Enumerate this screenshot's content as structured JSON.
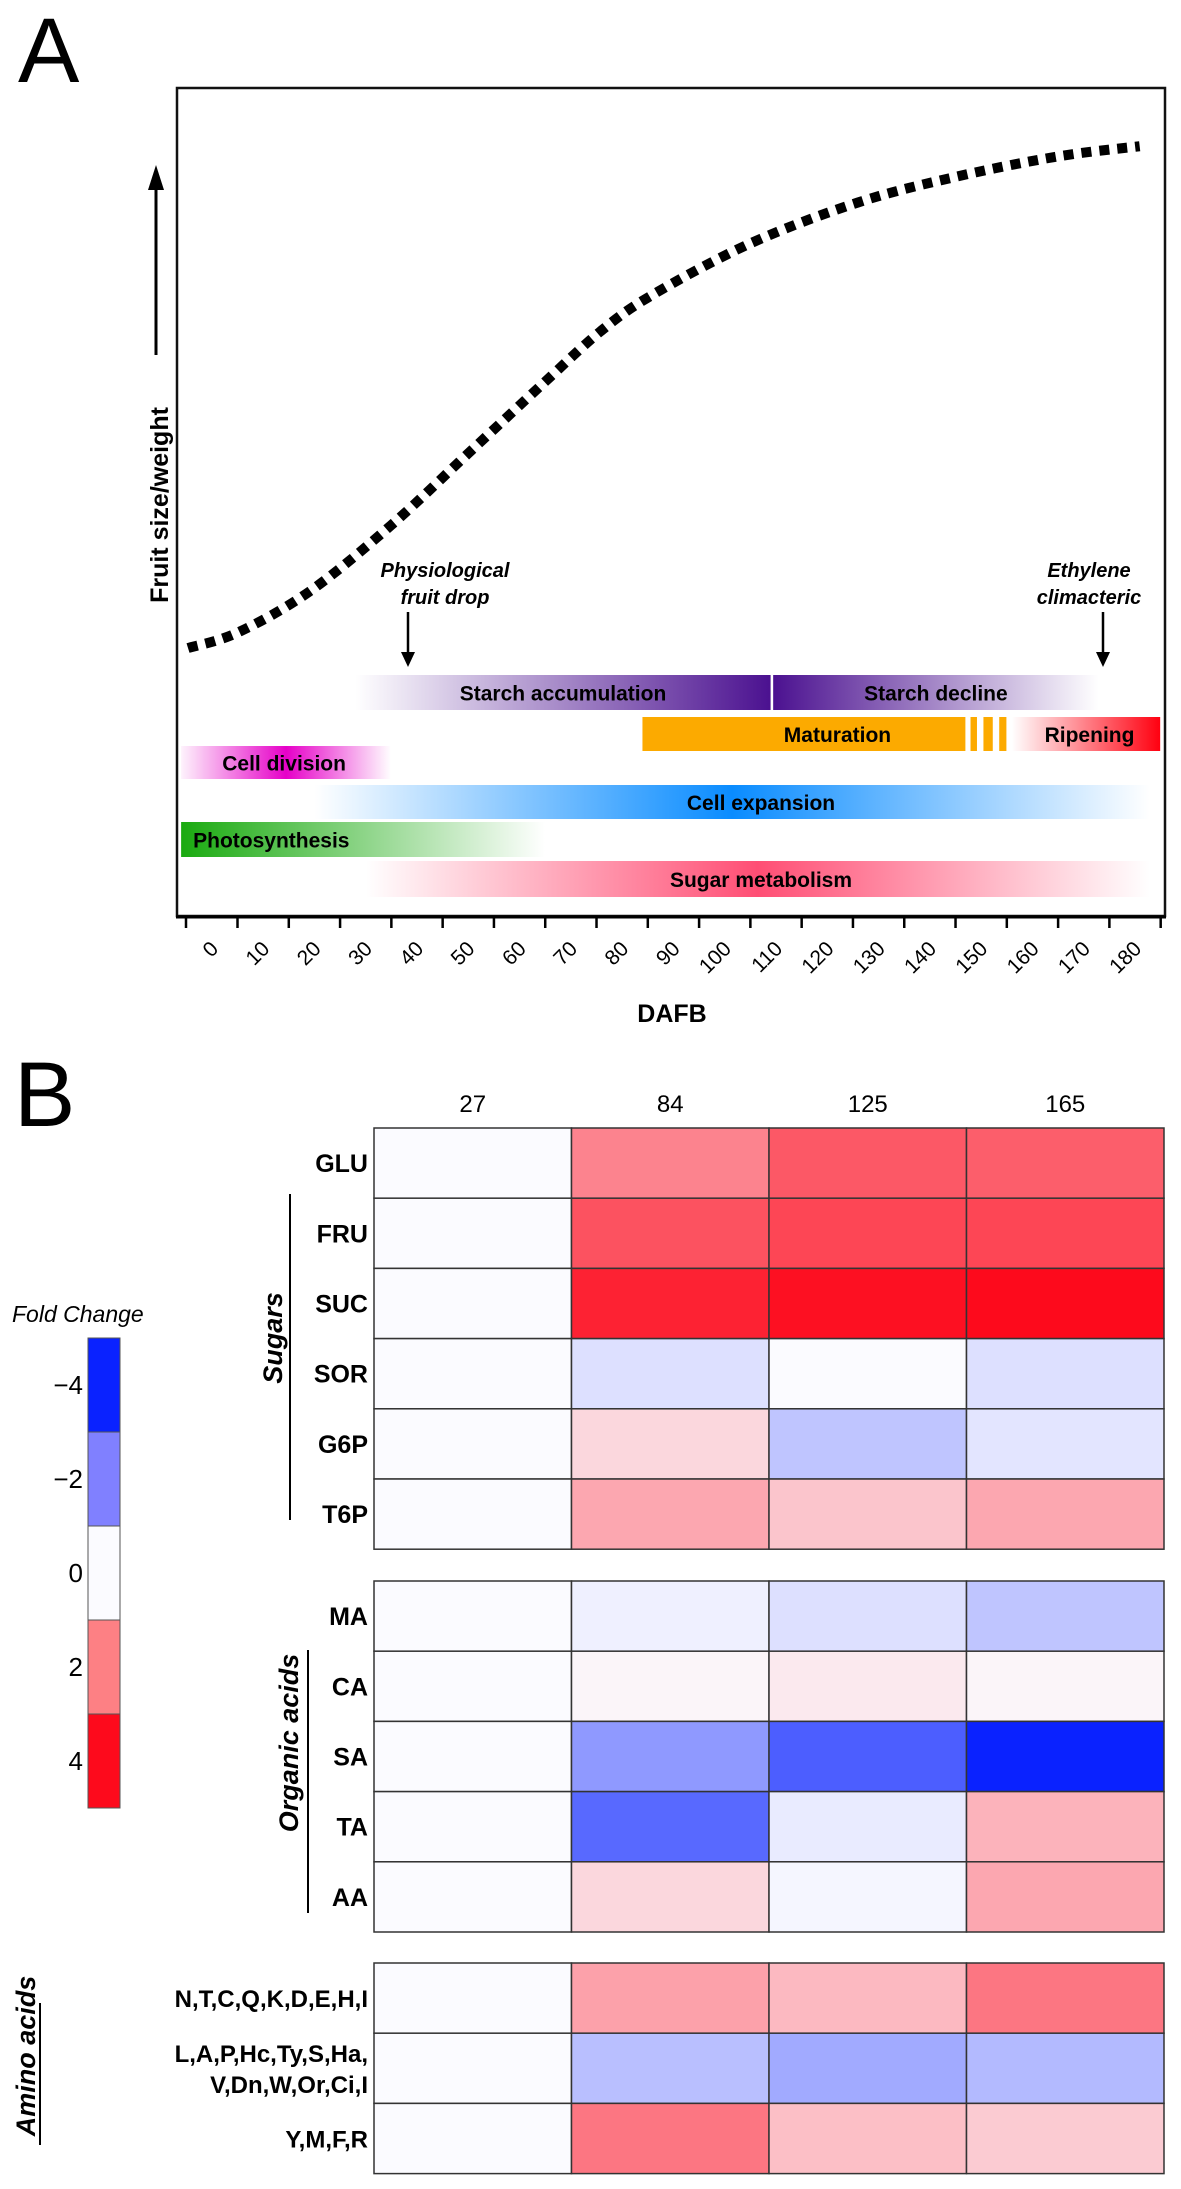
{
  "figure": {
    "panel_a_label": "A",
    "panel_b_label": "B"
  },
  "chart_data": [
    {
      "type": "line",
      "panel": "A",
      "title": "",
      "xlabel": "DAFB",
      "ylabel": "Fruit size/weight",
      "x_ticks": [
        0,
        10,
        20,
        30,
        40,
        50,
        60,
        70,
        80,
        90,
        100,
        110,
        120,
        130,
        140,
        150,
        160,
        170,
        180
      ],
      "xlim": [
        -10,
        182
      ],
      "ylim": [
        0,
        1
      ],
      "grid": false,
      "series": [
        {
          "name": "Fruit growth curve",
          "style": "dotted",
          "x": [
            -10,
            0,
            14,
            30,
            45,
            60,
            71,
            81,
            100,
            121,
            140,
            160,
            176
          ],
          "y": [
            0.0,
            0.03,
            0.11,
            0.24,
            0.38,
            0.52,
            0.62,
            0.69,
            0.79,
            0.87,
            0.92,
            0.96,
            0.98
          ]
        }
      ],
      "annotations": [
        {
          "id": "fruit-drop",
          "line1": "Physiological",
          "line2": "fruit drop",
          "day": 33
        },
        {
          "id": "ethylene",
          "line1": "Ethylene",
          "line2": "climacteric",
          "day": 170
        }
      ],
      "phases": [
        {
          "id": "starch-accumulation",
          "label": "Starch accumulation",
          "start": 23,
          "end": 104,
          "row": 0,
          "color": "#4b1190",
          "fade": "left"
        },
        {
          "id": "starch-decline",
          "label": "Starch decline",
          "start": 104.5,
          "end": 168,
          "row": 0,
          "color": "#4b1190",
          "fade": "right"
        },
        {
          "id": "maturation",
          "label": "Maturation",
          "start": 79,
          "end": 142,
          "row": 1,
          "color": "#fcaa00",
          "fade": "none"
        },
        {
          "id": "maturation-stripes",
          "label": "",
          "start": 143,
          "end": 150,
          "row": 1,
          "color": "#fcaa00",
          "fade": "stripes"
        },
        {
          "id": "ripening",
          "label": "Ripening",
          "start": 151,
          "end": 180,
          "row": 1,
          "color": "#ff0010",
          "fade": "left"
        },
        {
          "id": "cell-division",
          "label": "Cell division",
          "start": -11,
          "end": 30,
          "row": 2,
          "color": "#e600c8",
          "fade": "both"
        },
        {
          "id": "cell-expansion",
          "label": "Cell expansion",
          "start": 15,
          "end": 178,
          "row": 3,
          "color": "#0a8cff",
          "fade": "both"
        },
        {
          "id": "photosynthesis",
          "label": "Photosynthesis",
          "start": -11,
          "end": 60,
          "row": 4,
          "color": "#1aaa10",
          "fade": "right"
        },
        {
          "id": "sugar-metabolism",
          "label": "Sugar metabolism",
          "start": 25,
          "end": 178,
          "row": 5,
          "color": "#ff4e74",
          "fade": "both"
        }
      ]
    },
    {
      "type": "heatmap",
      "panel": "B",
      "title": "",
      "columns": [
        "27",
        "84",
        "125",
        "165"
      ],
      "legend": {
        "title": "Fold Change",
        "ticks": [
          "−4",
          "−2",
          "0",
          "2",
          "4"
        ],
        "values": [
          -4,
          -2,
          0,
          2,
          4
        ],
        "colors": [
          "#0a22ff",
          "#8080ff",
          "#fbfbff",
          "#fd8084",
          "#fd0a1c"
        ]
      },
      "groups": [
        {
          "name": "Sugars",
          "rows": [
            {
              "label": "GLU",
              "values": [
                0,
                2.0,
                2.7,
                2.6
              ]
            },
            {
              "label": "FRU",
              "values": [
                0,
                2.8,
                3.0,
                3.0
              ]
            },
            {
              "label": "SUC",
              "values": [
                0,
                3.6,
                3.9,
                4.0
              ]
            },
            {
              "label": "SOR",
              "values": [
                0,
                -0.5,
                0,
                -0.5
              ]
            },
            {
              "label": "G6P",
              "values": [
                0,
                0.6,
                -1.0,
                -0.4
              ]
            },
            {
              "label": "T6P",
              "values": [
                0,
                1.4,
                0.9,
                1.4
              ]
            }
          ]
        },
        {
          "name": "Organic acids",
          "rows": [
            {
              "label": "MA",
              "values": [
                0,
                -0.2,
                -0.5,
                -1.0
              ]
            },
            {
              "label": "CA",
              "values": [
                0,
                0.1,
                0.3,
                0.1
              ]
            },
            {
              "label": "SA",
              "values": [
                0,
                -1.8,
                -2.9,
                -4.0
              ]
            },
            {
              "label": "TA",
              "values": [
                0,
                -2.7,
                -0.3,
                1.2
              ]
            },
            {
              "label": "AA",
              "values": [
                0,
                0.6,
                -0.1,
                1.4
              ]
            }
          ]
        },
        {
          "name": "Amino acids",
          "rows": [
            {
              "label_lines": [
                "N,T,C,Q,K,D,E,H,I"
              ],
              "values": [
                0,
                1.5,
                1.1,
                2.2
              ]
            },
            {
              "label_lines": [
                "L,A,P,Hc,Ty,S,Ha,",
                "V,Dn,W,Or,Ci,I"
              ],
              "values": [
                0,
                -1.1,
                -1.5,
                -1.2
              ]
            },
            {
              "label_lines": [
                "Y,M,F,R"
              ],
              "values": [
                0,
                2.2,
                1.0,
                0.8
              ]
            }
          ]
        }
      ]
    }
  ]
}
